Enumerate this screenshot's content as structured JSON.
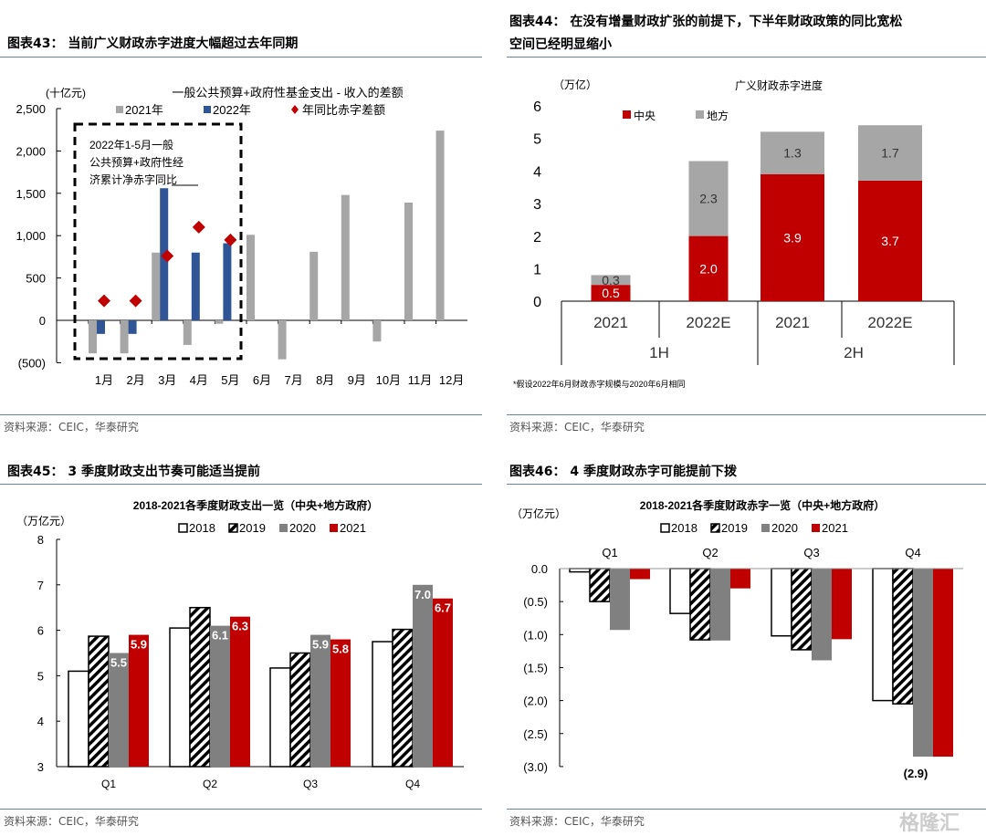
{
  "panels": {
    "p43": {
      "title": "图表43：  当前广义财政赤字进度大幅超过去年同期",
      "source": "资料来源：CEIC，华泰研究"
    },
    "p44": {
      "title1": "图表44：  在没有增量财政扩张的前提下，下半年财政政策的同比宽松",
      "title2": "空间已经明显缩小",
      "source": "资料来源：CEIC，华泰研究"
    },
    "p45": {
      "title": "图表45：  3 季度财政支出节奏可能适当提前",
      "source": "资料来源：CEIC，华泰研究"
    },
    "p46": {
      "title": "图表46：  4 季度财政赤字可能提前下拨",
      "source": "资料来源：CEIC，华泰研究"
    }
  },
  "watermark": "格隆汇",
  "colors": {
    "gray": "#a6a6a6",
    "blue": "#2f5597",
    "red": "#c00000",
    "darkgray": "#808080"
  },
  "chart_data": [
    {
      "type": "bar",
      "title": "一般公共预算+政府性基金支出 - 收入的差额",
      "unit": "(十亿元)",
      "categories": [
        "1月",
        "2月",
        "3月",
        "4月",
        "5月",
        "6月",
        "7月",
        "8月",
        "9月",
        "10月",
        "11月",
        "12月"
      ],
      "yticks": [
        "2,500",
        "2,000",
        "1,500",
        "1,000",
        "500",
        "0",
        "(500)"
      ],
      "ylim": [
        -500,
        2500
      ],
      "series": [
        {
          "name": "2021年",
          "values": [
            -390,
            -390,
            800,
            -290,
            -40,
            1010,
            -460,
            810,
            1480,
            -250,
            1390,
            2240
          ]
        },
        {
          "name": "2022年",
          "values": [
            -160,
            -160,
            1560,
            800,
            910,
            null,
            null,
            null,
            null,
            null,
            null,
            null
          ]
        },
        {
          "name": "年同比赤字差额",
          "values": [
            230,
            230,
            760,
            1100,
            950,
            null,
            null,
            null,
            null,
            null,
            null,
            null
          ]
        }
      ],
      "annotation": [
        "2022年1-5月一般",
        "公共预算+政府性经",
        "济累计净赤字同比"
      ]
    },
    {
      "type": "bar",
      "stacked": true,
      "title": "广义财政赤字进度",
      "unit": "（万亿）",
      "categories": [
        "2021",
        "2022E",
        "2021",
        "2022E"
      ],
      "groups": [
        "1H",
        "2H"
      ],
      "yticks": [
        "6",
        "5",
        "4",
        "3",
        "2",
        "1",
        "0"
      ],
      "ylim": [
        0,
        6
      ],
      "series": [
        {
          "name": "中央",
          "values": [
            0.5,
            2.0,
            3.9,
            3.7
          ],
          "labels": [
            "0.5",
            "2.0",
            "3.9",
            "3.7"
          ]
        },
        {
          "name": "地方",
          "values": [
            0.3,
            2.3,
            1.3,
            1.7
          ],
          "labels": [
            "0.3",
            "2.3",
            "1.3",
            "1.7"
          ]
        }
      ],
      "footnote": "*假设2022年6月财政赤字规模与2020年6月相同"
    },
    {
      "type": "bar",
      "title": "2018-2021各季度财政支出一览（中央+地方政府）",
      "unit": "（万亿元）",
      "categories": [
        "Q1",
        "Q2",
        "Q3",
        "Q4"
      ],
      "yticks": [
        "8",
        "7",
        "6",
        "5",
        "4",
        "3"
      ],
      "ylim": [
        3,
        8
      ],
      "series": [
        {
          "name": "2018",
          "values": [
            5.1,
            6.05,
            5.17,
            5.75
          ]
        },
        {
          "name": "2019",
          "values": [
            5.87,
            6.5,
            5.5,
            6.02
          ]
        },
        {
          "name": "2020",
          "values": [
            5.5,
            6.1,
            5.9,
            7.0
          ],
          "labels": [
            "5.5",
            "6.1",
            "5.9",
            "7.0"
          ]
        },
        {
          "name": "2021",
          "values": [
            5.9,
            6.3,
            5.8,
            6.7
          ],
          "labels": [
            "5.9",
            "6.3",
            "5.8",
            "6.7"
          ]
        }
      ]
    },
    {
      "type": "bar",
      "title": "2018-2021各季度财政赤字一览（中央+地方政府）",
      "unit": "（万亿元）",
      "categories": [
        "Q1",
        "Q2",
        "Q3",
        "Q4"
      ],
      "yticks": [
        "0.0",
        "(0.5)",
        "(1.0)",
        "(1.5)",
        "(2.0)",
        "(2.5)",
        "(3.0)"
      ],
      "ylim": [
        -3,
        0
      ],
      "series": [
        {
          "name": "2018",
          "values": [
            -0.05,
            -0.68,
            -1.02,
            -2.0
          ]
        },
        {
          "name": "2019",
          "values": [
            -0.5,
            -1.08,
            -1.23,
            -2.05
          ]
        },
        {
          "name": "2020",
          "values": [
            -0.93,
            -1.09,
            -1.39,
            -2.85
          ]
        },
        {
          "name": "2021",
          "values": [
            -0.16,
            -0.3,
            -1.07,
            -2.85
          ]
        }
      ],
      "annotation": "(2.9)"
    }
  ]
}
